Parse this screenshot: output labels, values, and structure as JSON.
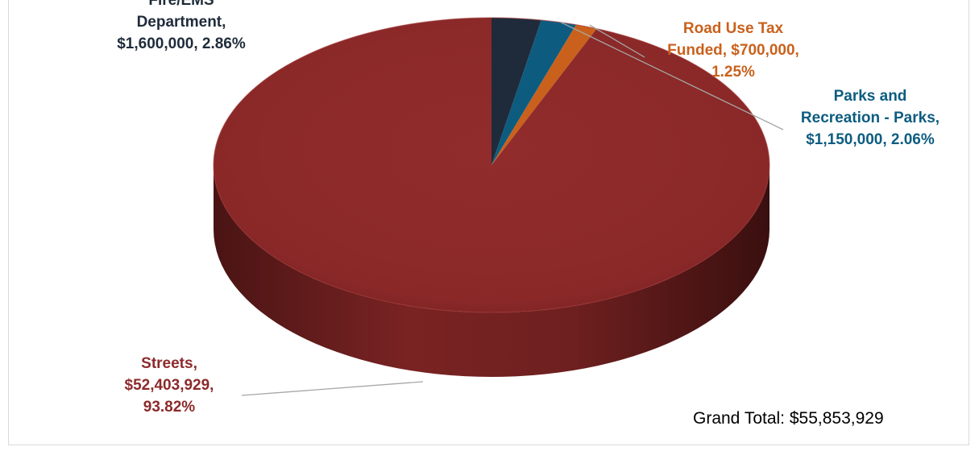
{
  "chart_data": {
    "type": "pie",
    "style": "3d",
    "slices": [
      {
        "name": "Streets",
        "value": 52403929,
        "value_label": "$52,403,929",
        "percent": 93.82,
        "percent_label": "93.82%",
        "color": "#8c2a2b",
        "label_lines": [
          "Streets,",
          "$52,403,929,",
          "93.82%"
        ]
      },
      {
        "name": "Fire/EMS Department",
        "value": 1600000,
        "value_label": "$1,600,000",
        "percent": 2.86,
        "percent_label": "2.86%",
        "color": "#1f2b3a",
        "label_lines": [
          "Fire/EMS",
          "Department,",
          "$1,600,000, 2.86%"
        ]
      },
      {
        "name": "Parks and Recreation - Parks",
        "value": 1150000,
        "value_label": "$1,150,000",
        "percent": 2.06,
        "percent_label": "2.06%",
        "color": "#0d5c80",
        "label_lines": [
          "Parks and",
          "Recreation - Parks,",
          "$1,150,000, 2.06%"
        ]
      },
      {
        "name": "Road Use Tax Funded",
        "value": 700000,
        "value_label": "$700,000",
        "percent": 1.25,
        "percent_label": "1.25%",
        "color": "#c9611c",
        "label_lines": [
          "Road Use Tax",
          "Funded, $700,000,",
          "1.25%"
        ]
      }
    ],
    "grand_total_label": "Grand Total: $55,853,929"
  }
}
